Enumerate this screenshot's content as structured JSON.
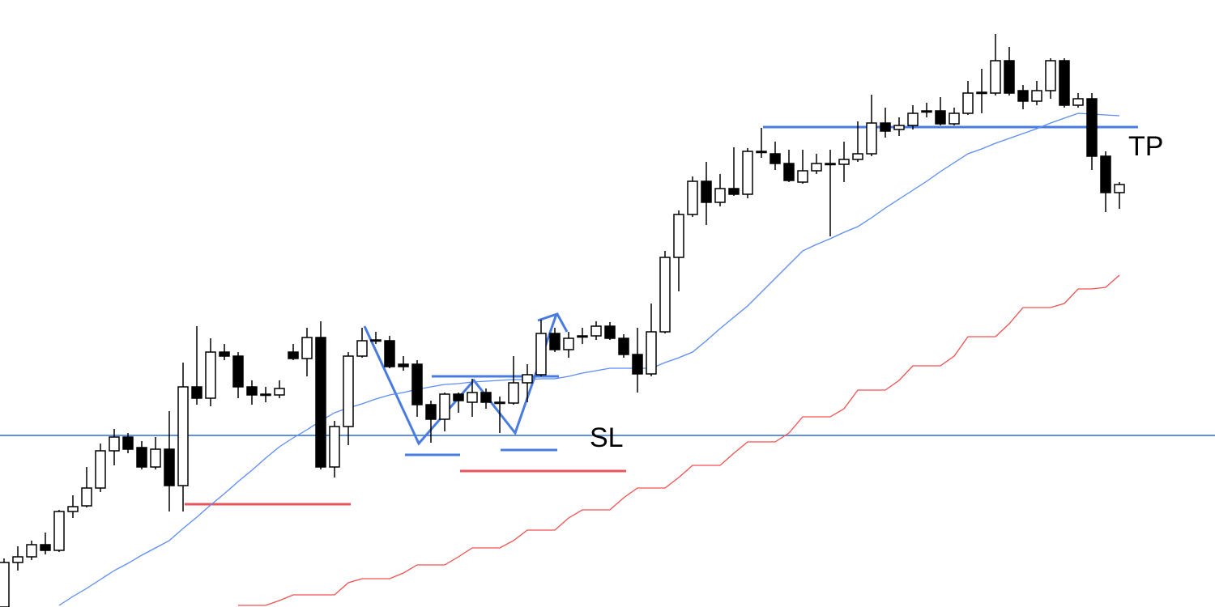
{
  "chart_data": {
    "type": "candlestick",
    "ylim": [
      0,
      750
    ],
    "up_color": "#ffffff",
    "down_color": "#000000",
    "open": [
      0,
      55,
      62,
      77,
      70,
      118,
      125,
      147,
      193,
      210,
      197,
      173,
      195,
      150,
      272,
      258,
      315,
      310,
      272,
      263,
      262,
      315,
      307,
      333,
      173,
      223,
      310,
      330,
      329,
      300,
      300,
      250,
      232,
      263,
      253,
      265,
      253,
      252,
      277,
      287,
      338,
      318,
      335,
      335,
      347,
      332,
      312,
      288,
      340,
      432,
      485,
      526,
      500,
      517,
      510,
      563,
      560,
      548,
      525,
      539,
      548,
      547,
      553,
      560,
      598,
      590,
      595,
      613,
      613,
      597,
      610,
      636,
      635,
      675,
      638,
      625,
      638,
      675,
      620,
      628,
      557,
      512
    ],
    "high": [
      60,
      75,
      82,
      92,
      120,
      138,
      173,
      202,
      220,
      215,
      205,
      210,
      242,
      302,
      347,
      332,
      325,
      315,
      280,
      272,
      280,
      325,
      345,
      353,
      230,
      315,
      345,
      340,
      335,
      310,
      305,
      255,
      265,
      265,
      282,
      270,
      260,
      310,
      300,
      355,
      345,
      340,
      345,
      353,
      352,
      337,
      345,
      375,
      440,
      490,
      532,
      550,
      535,
      568,
      567,
      592,
      575,
      565,
      565,
      560,
      565,
      575,
      600,
      633,
      617,
      605,
      620,
      623,
      630,
      617,
      650,
      665,
      708,
      692,
      645,
      650,
      678,
      678,
      635,
      635,
      563,
      525
    ],
    "low": [
      0,
      45,
      58,
      65,
      68,
      110,
      123,
      142,
      175,
      190,
      170,
      170,
      118,
      118,
      250,
      248,
      305,
      258,
      250,
      253,
      258,
      305,
      285,
      170,
      160,
      200,
      308,
      325,
      295,
      292,
      235,
      203,
      217,
      240,
      235,
      245,
      215,
      250,
      253,
      285,
      315,
      308,
      325,
      330,
      330,
      308,
      265,
      285,
      338,
      390,
      482,
      472,
      495,
      508,
      505,
      555,
      540,
      525,
      523,
      535,
      458,
      525,
      550,
      557,
      580,
      582,
      590,
      605,
      595,
      595,
      608,
      610,
      632,
      632,
      615,
      620,
      628,
      617,
      617,
      540,
      488,
      492
    ],
    "close": [
      55,
      62,
      77,
      70,
      118,
      124,
      147,
      193,
      210,
      195,
      173,
      195,
      150,
      272,
      258,
      315,
      310,
      272,
      262,
      263,
      270,
      307,
      333,
      173,
      223,
      310,
      329,
      330,
      297,
      297,
      250,
      232,
      263,
      255,
      265,
      253,
      253,
      277,
      287,
      338,
      318,
      332,
      335,
      347,
      332,
      312,
      288,
      340,
      432,
      485,
      526,
      500,
      517,
      510,
      563,
      563,
      548,
      527,
      539,
      548,
      548,
      553,
      560,
      598,
      588,
      595,
      610,
      613,
      597,
      610,
      635,
      636,
      675,
      635,
      625,
      638,
      675,
      620,
      628,
      557,
      512,
      522
    ],
    "series": [
      {
        "color": "#5b8cf7",
        "values": [
          null,
          null,
          null,
          null,
          2,
          13,
          23,
          34,
          45,
          54,
          64,
          73,
          82,
          97,
          111,
          126,
          140,
          155,
          169,
          184,
          198,
          209,
          219,
          230,
          240,
          246,
          251,
          257,
          262,
          265,
          269,
          272,
          275,
          276,
          278,
          279,
          280,
          281,
          281,
          282,
          282,
          285,
          289,
          292,
          295,
          295,
          295,
          295,
          302,
          308,
          315,
          329,
          344,
          358,
          372,
          389,
          406,
          423,
          440,
          448,
          455,
          463,
          470,
          481,
          493,
          504,
          515,
          526,
          538,
          549,
          560,
          566,
          573,
          579,
          585,
          591,
          598,
          604,
          610,
          609,
          608,
          607
        ]
      },
      {
        "color": "#f05050",
        "values": [
          null,
          null,
          null,
          null,
          null,
          null,
          null,
          null,
          null,
          null,
          null,
          null,
          null,
          null,
          null,
          null,
          null,
          2,
          2,
          2,
          8,
          15,
          15,
          15,
          15,
          30,
          35,
          35,
          35,
          42,
          52,
          52,
          52,
          62,
          73,
          73,
          73,
          82,
          95,
          95,
          95,
          110,
          120,
          120,
          120,
          135,
          147,
          147,
          147,
          160,
          175,
          175,
          175,
          190,
          204,
          204,
          204,
          215,
          235,
          235,
          235,
          245,
          268,
          268,
          268,
          280,
          298,
          298,
          298,
          310,
          334,
          334,
          334,
          350,
          370,
          370,
          370,
          375,
          393,
          393,
          395,
          410
        ]
      }
    ],
    "annotations": [
      "TP",
      "SL"
    ]
  }
}
